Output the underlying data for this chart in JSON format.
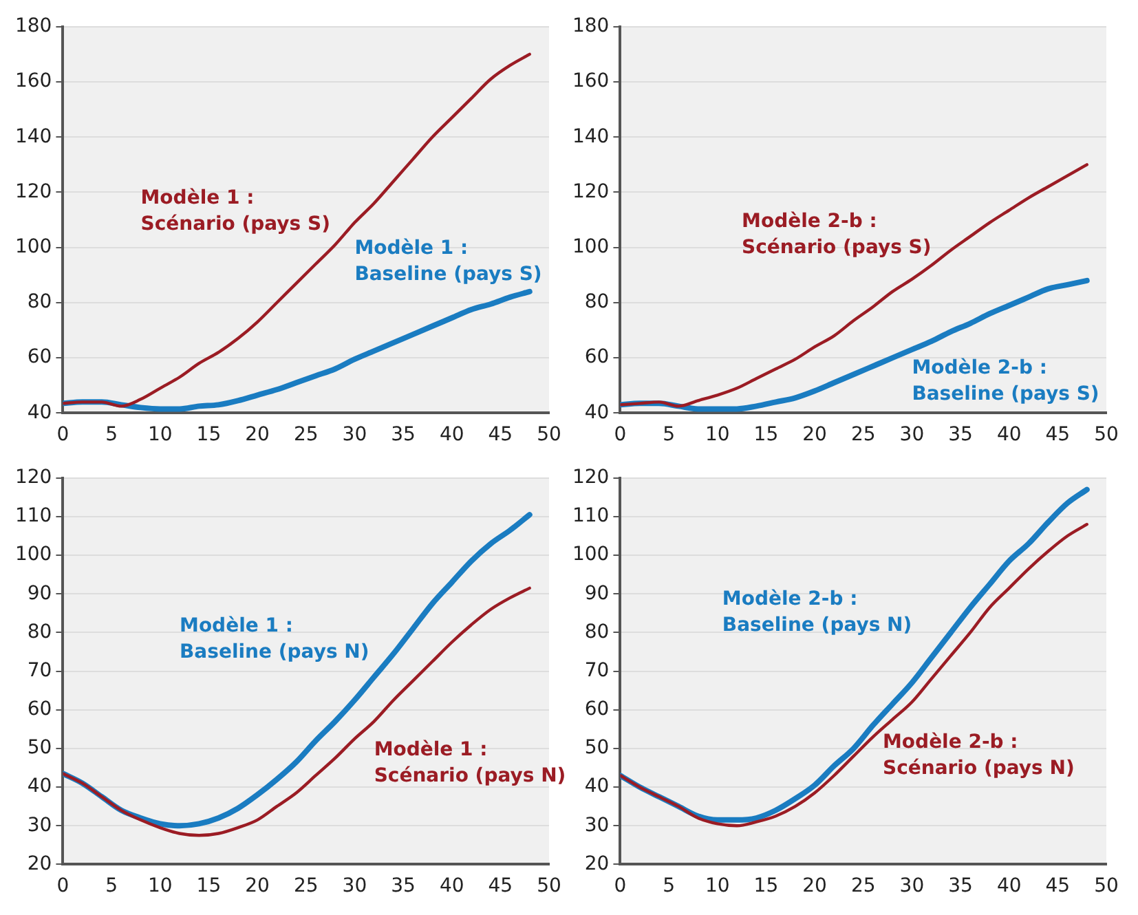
{
  "chart_data": [
    {
      "type": "line",
      "x": [
        0,
        2,
        4,
        6,
        8,
        10,
        12,
        14,
        16,
        18,
        20,
        22,
        24,
        26,
        28,
        30,
        32,
        34,
        36,
        38,
        40,
        42,
        44,
        46,
        48
      ],
      "xlim": [
        0,
        50
      ],
      "xticks": [
        0,
        5,
        10,
        15,
        20,
        25,
        30,
        35,
        40,
        45,
        50
      ],
      "ylim": [
        40,
        180
      ],
      "yticks": [
        40,
        60,
        80,
        100,
        120,
        140,
        160,
        180
      ],
      "grid": "y",
      "marker": "none",
      "series": [
        {
          "name": "Modèle 1 : Scénario (pays S)",
          "color": "#9b1c24",
          "values": [
            43.5,
            44,
            44,
            42.5,
            45,
            49,
            53,
            58,
            62,
            67,
            73,
            80,
            87,
            94,
            101,
            109,
            116,
            124,
            132,
            140,
            147,
            154,
            161,
            166,
            170
          ]
        },
        {
          "name": "Modèle 1 : Baseline (pays S)",
          "color": "#1a7cc1",
          "values": [
            43.5,
            44,
            44,
            43,
            42,
            41.5,
            41.5,
            42.5,
            43,
            44.5,
            46.5,
            48.5,
            51,
            53.5,
            56,
            59.5,
            62.5,
            65.5,
            68.5,
            71.5,
            74.5,
            77.5,
            79.5,
            82,
            84
          ]
        }
      ]
    },
    {
      "type": "line",
      "x": [
        0,
        2,
        4,
        6,
        8,
        10,
        12,
        14,
        16,
        18,
        20,
        22,
        24,
        26,
        28,
        30,
        32,
        34,
        36,
        38,
        40,
        42,
        44,
        46,
        48
      ],
      "xlim": [
        0,
        50
      ],
      "xticks": [
        0,
        5,
        10,
        15,
        20,
        25,
        30,
        35,
        40,
        45,
        50
      ],
      "ylim": [
        40,
        180
      ],
      "yticks": [
        40,
        60,
        80,
        100,
        120,
        140,
        160,
        180
      ],
      "grid": "y",
      "marker": "none",
      "series": [
        {
          "name": "Modèle 2-b : Scénario (pays S)",
          "color": "#9b1c24",
          "values": [
            43,
            43.5,
            44,
            42.5,
            44.5,
            46.5,
            49,
            52.5,
            56,
            59.5,
            64,
            68,
            73.5,
            78.5,
            84,
            88.5,
            93.5,
            99,
            104,
            109,
            113.5,
            118,
            122,
            126,
            130
          ]
        },
        {
          "name": "Modèle 2-b : Baseline (pays S)",
          "color": "#1a7cc1",
          "values": [
            43,
            43.5,
            43.5,
            42.5,
            41.5,
            41.5,
            41.5,
            42.5,
            44,
            45.5,
            48,
            51,
            54,
            57,
            60,
            63,
            66,
            69.5,
            72.5,
            76,
            79,
            82,
            85,
            86.5,
            88
          ]
        }
      ]
    },
    {
      "type": "line",
      "x": [
        0,
        2,
        4,
        6,
        8,
        10,
        12,
        14,
        16,
        18,
        20,
        22,
        24,
        26,
        28,
        30,
        32,
        34,
        36,
        38,
        40,
        42,
        44,
        46,
        48
      ],
      "xlim": [
        0,
        50
      ],
      "xticks": [
        0,
        5,
        10,
        15,
        20,
        25,
        30,
        35,
        40,
        45,
        50
      ],
      "ylim": [
        20,
        120
      ],
      "yticks": [
        20,
        30,
        40,
        50,
        60,
        70,
        80,
        90,
        100,
        110,
        120
      ],
      "grid": "y",
      "marker": "none",
      "series": [
        {
          "name": "Modèle 1 : Baseline (pays N)",
          "color": "#1a7cc1",
          "values": [
            43.5,
            41,
            37.5,
            34,
            32,
            30.5,
            30,
            30.5,
            32,
            34.5,
            38,
            42,
            46.5,
            52,
            57,
            62.5,
            68.5,
            74.5,
            81,
            87.5,
            93,
            98.5,
            103,
            106.5,
            110.5
          ]
        },
        {
          "name": "Modèle 1 : Scénario (pays N)",
          "color": "#9b1c24",
          "values": [
            43.5,
            41,
            37.5,
            34,
            31.5,
            29.5,
            28,
            27.5,
            28,
            29.5,
            31.5,
            35,
            38.5,
            43,
            47.5,
            52.5,
            57,
            62.5,
            67.5,
            72.5,
            77.5,
            82,
            86,
            89,
            91.5
          ]
        }
      ]
    },
    {
      "type": "line",
      "x": [
        0,
        2,
        4,
        6,
        8,
        10,
        12,
        14,
        16,
        18,
        20,
        22,
        24,
        26,
        28,
        30,
        32,
        34,
        36,
        38,
        40,
        42,
        44,
        46,
        48
      ],
      "xlim": [
        0,
        50
      ],
      "xticks": [
        0,
        5,
        10,
        15,
        20,
        25,
        30,
        35,
        40,
        45,
        50
      ],
      "ylim": [
        20,
        120
      ],
      "yticks": [
        20,
        30,
        40,
        50,
        60,
        70,
        80,
        90,
        100,
        110,
        120
      ],
      "grid": "y",
      "marker": "none",
      "series": [
        {
          "name": "Modèle 2-b : Baseline (pays N)",
          "color": "#1a7cc1",
          "values": [
            43,
            40,
            37.5,
            35,
            32.5,
            31.5,
            31.5,
            32,
            34,
            37,
            40.5,
            45.5,
            50,
            56,
            61.5,
            67,
            73.5,
            80,
            86.5,
            92.5,
            98.5,
            103,
            108.5,
            113.5,
            117
          ]
        },
        {
          "name": "Modèle 2-b : Scénario (pays N)",
          "color": "#9b1c24",
          "values": [
            43,
            40,
            37.5,
            35,
            32,
            30.5,
            30,
            31,
            32.5,
            35,
            38.5,
            43,
            48,
            53,
            57.5,
            62,
            68,
            74,
            80,
            86.5,
            91.5,
            96.5,
            101,
            105,
            108
          ]
        }
      ]
    }
  ]
}
